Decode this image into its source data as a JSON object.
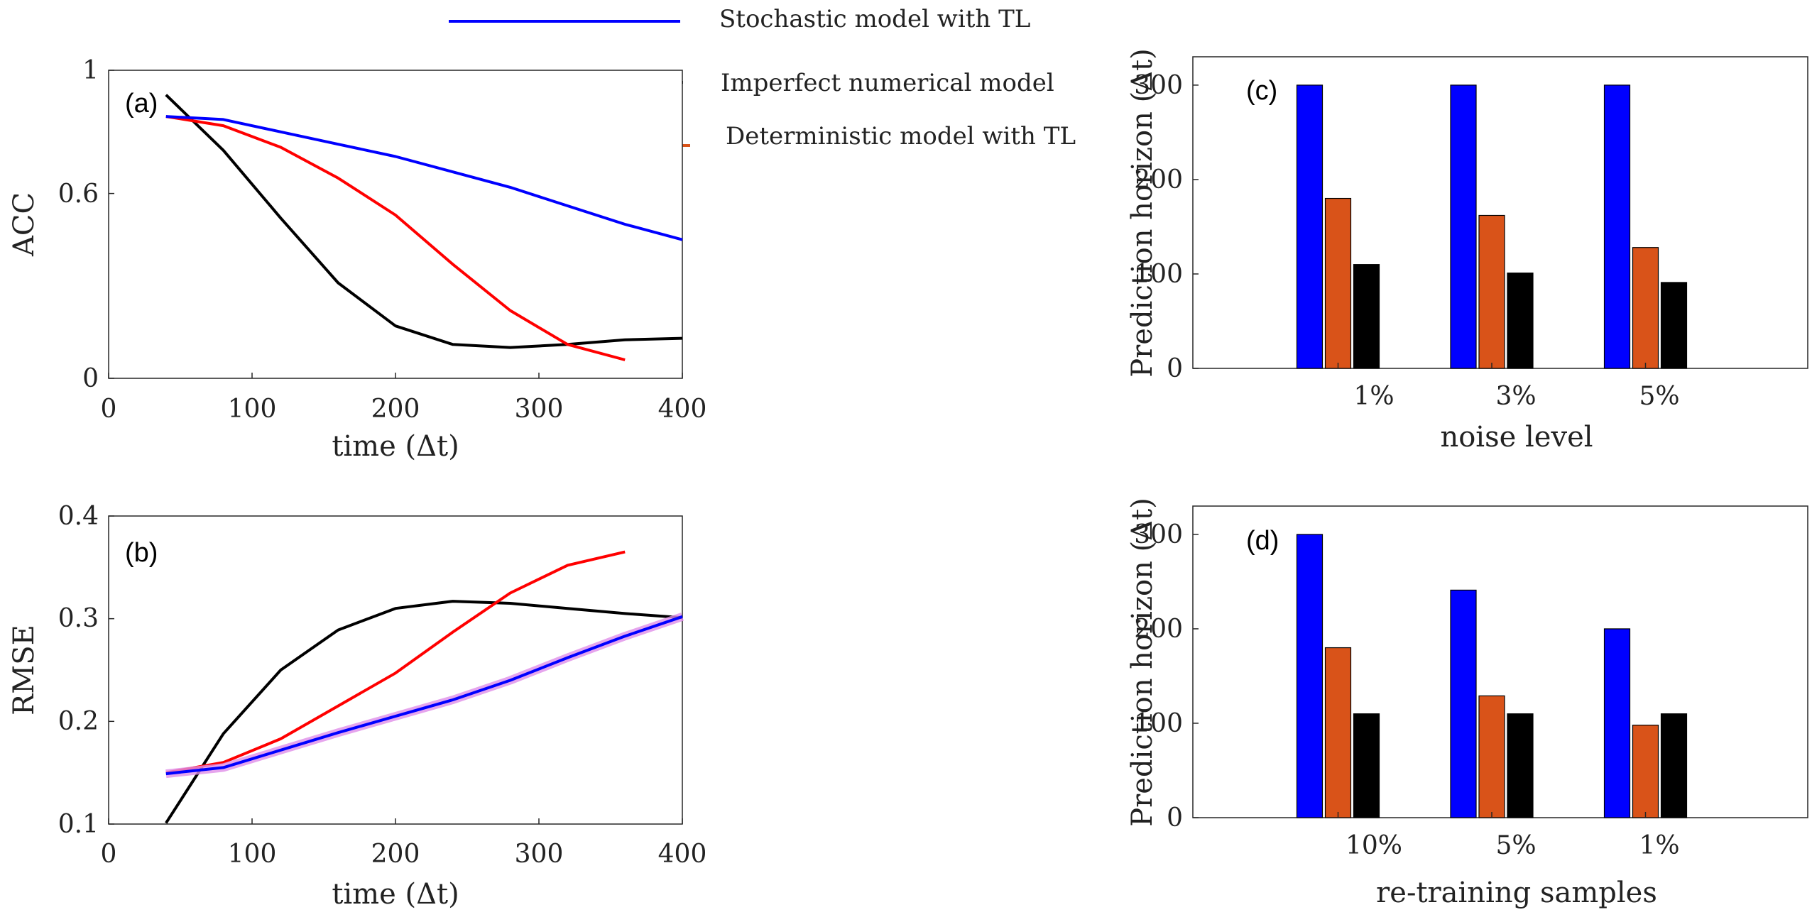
{
  "colors": {
    "stochastic": "#0000ff",
    "imperfect": "#000000",
    "deterministic_line": "#ff0000",
    "deterministic_bar": "#d95319",
    "deterministic_legend": "#d95319",
    "stochastic_band": "#e08ee8"
  },
  "legend": [
    {
      "label": "Stochastic model with TL",
      "color": "#0000ff"
    },
    {
      "label": "Imperfect numerical model",
      "color": "#000000"
    },
    {
      "label": "Deterministic model with TL",
      "color": "#d95319"
    }
  ],
  "chart_data": [
    {
      "id": "a",
      "type": "line",
      "panel_label": "(a)",
      "xlabel": "time (Δt)",
      "ylabel": "ACC",
      "xlim": [
        0,
        400
      ],
      "ylim": [
        0,
        1
      ],
      "xticks": [
        "0",
        "100",
        "200",
        "300",
        "400"
      ],
      "xtick_values": [
        0,
        100,
        200,
        300,
        400
      ],
      "yticks": [
        "0",
        "0.6",
        "1"
      ],
      "ytick_values": [
        0,
        0.6,
        1
      ],
      "series": [
        {
          "key": "imperfect",
          "color": "#000000",
          "x": [
            40,
            80,
            120,
            160,
            200,
            240,
            280,
            320,
            360,
            400
          ],
          "y": [
            0.92,
            0.74,
            0.52,
            0.31,
            0.17,
            0.11,
            0.1,
            0.11,
            0.125,
            0.13
          ]
        },
        {
          "key": "deterministic",
          "color": "#ff0000",
          "x": [
            40,
            80,
            120,
            160,
            200,
            240,
            280,
            320,
            360
          ],
          "y": [
            0.85,
            0.82,
            0.75,
            0.65,
            0.53,
            0.37,
            0.22,
            0.11,
            0.06
          ]
        },
        {
          "key": "stochastic",
          "color": "#0000ff",
          "x": [
            40,
            80,
            120,
            160,
            200,
            240,
            280,
            320,
            360,
            400
          ],
          "y": [
            0.85,
            0.84,
            0.8,
            0.76,
            0.72,
            0.67,
            0.62,
            0.56,
            0.5,
            0.45
          ]
        }
      ]
    },
    {
      "id": "b",
      "type": "line",
      "panel_label": "(b)",
      "xlabel": "time (Δt)",
      "ylabel": "RMSE",
      "xlim": [
        0,
        400
      ],
      "ylim": [
        0.1,
        0.4
      ],
      "xticks": [
        "0",
        "100",
        "200",
        "300",
        "400"
      ],
      "xtick_values": [
        0,
        100,
        200,
        300,
        400
      ],
      "yticks": [
        "0.1",
        "0.2",
        "0.3",
        "0.4"
      ],
      "ytick_values": [
        0.1,
        0.2,
        0.3,
        0.4
      ],
      "series": [
        {
          "key": "imperfect",
          "color": "#000000",
          "x": [
            40,
            80,
            120,
            160,
            200,
            240,
            280,
            320,
            360,
            400
          ],
          "y": [
            0.101,
            0.188,
            0.25,
            0.289,
            0.31,
            0.317,
            0.315,
            0.31,
            0.305,
            0.301
          ]
        },
        {
          "key": "deterministic",
          "color": "#ff0000",
          "x": [
            40,
            80,
            120,
            160,
            200,
            240,
            280,
            320,
            360
          ],
          "y": [
            0.15,
            0.16,
            0.183,
            0.215,
            0.247,
            0.287,
            0.325,
            0.352,
            0.365
          ]
        },
        {
          "key": "stochastic",
          "color": "#0000ff",
          "band_color": "#e08ee8",
          "band_width": 0.006,
          "x": [
            40,
            80,
            120,
            160,
            200,
            240,
            280,
            320,
            360,
            400
          ],
          "y": [
            0.149,
            0.155,
            0.172,
            0.189,
            0.205,
            0.221,
            0.24,
            0.262,
            0.283,
            0.302
          ]
        }
      ]
    },
    {
      "id": "c",
      "type": "bar",
      "panel_label": "(c)",
      "xlabel": "noise level",
      "ylabel": "Prediction horizon (Δt)",
      "ylim": [
        0,
        330
      ],
      "yticks": [
        "0",
        "100",
        "200",
        "300"
      ],
      "ytick_values": [
        0,
        100,
        200,
        300
      ],
      "categories": [
        "1%",
        "3%",
        "5%"
      ],
      "series": [
        {
          "key": "stochastic",
          "color": "#0000ff",
          "values": [
            300,
            300,
            300
          ]
        },
        {
          "key": "deterministic",
          "color": "#d95319",
          "values": [
            180,
            162,
            128
          ]
        },
        {
          "key": "imperfect",
          "color": "#000000",
          "values": [
            110,
            101,
            91
          ]
        }
      ]
    },
    {
      "id": "d",
      "type": "bar",
      "panel_label": "(d)",
      "xlabel": "re-training samples",
      "ylabel": "Prediction horizon (Δt)",
      "ylim": [
        0,
        330
      ],
      "yticks": [
        "0",
        "100",
        "200",
        "300"
      ],
      "ytick_values": [
        0,
        100,
        200,
        300
      ],
      "categories": [
        "10%",
        "5%",
        "1%"
      ],
      "series": [
        {
          "key": "stochastic",
          "color": "#0000ff",
          "values": [
            300,
            241,
            200
          ]
        },
        {
          "key": "deterministic",
          "color": "#d95319",
          "values": [
            180,
            129,
            98
          ]
        },
        {
          "key": "imperfect",
          "color": "#000000",
          "values": [
            110,
            110,
            110
          ]
        }
      ]
    }
  ]
}
